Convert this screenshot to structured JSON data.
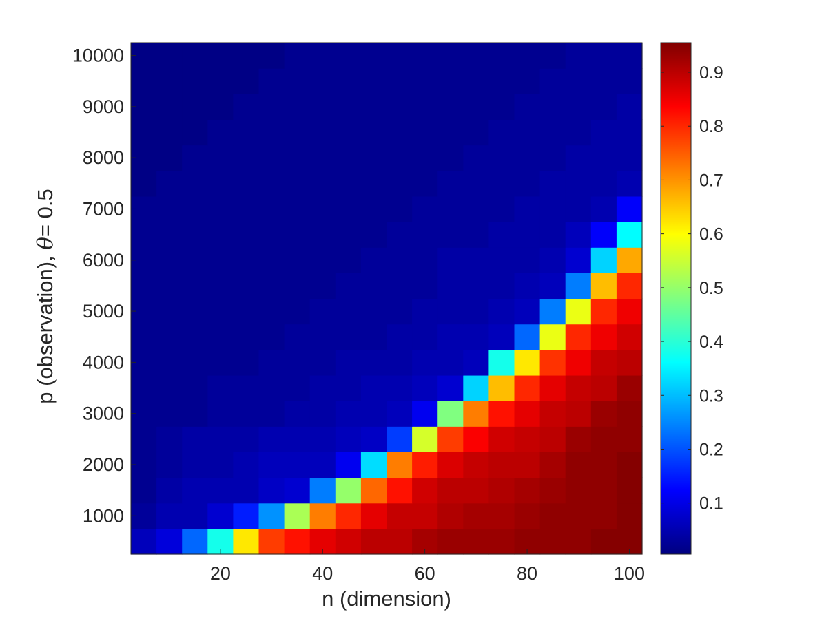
{
  "chart_data": {
    "type": "heatmap",
    "title": "",
    "xlabel": "n (dimension)",
    "ylabel_parts": {
      "prefix": "p (observation), ",
      "symbol": "θ",
      "suffix": "= 0.5"
    },
    "x_ticks": [
      20,
      40,
      60,
      80,
      100
    ],
    "y_ticks": [
      1000,
      2000,
      3000,
      4000,
      5000,
      6000,
      7000,
      8000,
      9000,
      10000
    ],
    "colorbar_ticks": [
      0.1,
      0.2,
      0.3,
      0.4,
      0.5,
      0.6,
      0.7,
      0.8,
      0.9
    ],
    "colormap": "jet",
    "clim": [
      0.005,
      0.955
    ],
    "xlim": [
      2.5,
      102.5
    ],
    "ylim": [
      250,
      10250
    ],
    "n_values": [
      5,
      10,
      15,
      20,
      25,
      30,
      35,
      40,
      45,
      50,
      55,
      60,
      65,
      70,
      75,
      80,
      85,
      90,
      95,
      100
    ],
    "p_values": [
      500,
      1000,
      1500,
      2000,
      2500,
      3000,
      3500,
      4000,
      4500,
      5000,
      5500,
      6000,
      6500,
      7000,
      7500,
      8000,
      8500,
      9000,
      9500,
      10000
    ],
    "z": [
      [
        0.06,
        0.09,
        0.22,
        0.38,
        0.62,
        0.78,
        0.82,
        0.86,
        0.88,
        0.9,
        0.9,
        0.92,
        0.93,
        0.93,
        0.93,
        0.94,
        0.94,
        0.94,
        0.95,
        0.95
      ],
      [
        0.03,
        0.05,
        0.05,
        0.08,
        0.15,
        0.26,
        0.52,
        0.72,
        0.8,
        0.86,
        0.89,
        0.89,
        0.91,
        0.92,
        0.92,
        0.93,
        0.94,
        0.94,
        0.94,
        0.95
      ],
      [
        0.02,
        0.04,
        0.05,
        0.05,
        0.05,
        0.07,
        0.08,
        0.24,
        0.5,
        0.74,
        0.82,
        0.88,
        0.9,
        0.9,
        0.91,
        0.92,
        0.93,
        0.94,
        0.94,
        0.95
      ],
      [
        0.02,
        0.03,
        0.04,
        0.04,
        0.05,
        0.06,
        0.06,
        0.06,
        0.11,
        0.33,
        0.72,
        0.81,
        0.87,
        0.89,
        0.9,
        0.9,
        0.92,
        0.94,
        0.94,
        0.95
      ],
      [
        0.02,
        0.03,
        0.04,
        0.04,
        0.04,
        0.05,
        0.05,
        0.05,
        0.06,
        0.07,
        0.18,
        0.56,
        0.78,
        0.84,
        0.88,
        0.89,
        0.9,
        0.93,
        0.94,
        0.94
      ],
      [
        0.02,
        0.02,
        0.02,
        0.03,
        0.03,
        0.03,
        0.04,
        0.04,
        0.05,
        0.05,
        0.06,
        0.11,
        0.48,
        0.72,
        0.82,
        0.86,
        0.89,
        0.9,
        0.93,
        0.94
      ],
      [
        0.02,
        0.02,
        0.02,
        0.03,
        0.03,
        0.03,
        0.03,
        0.04,
        0.04,
        0.05,
        0.05,
        0.06,
        0.08,
        0.32,
        0.66,
        0.8,
        0.86,
        0.89,
        0.9,
        0.93
      ],
      [
        0.02,
        0.02,
        0.02,
        0.02,
        0.02,
        0.03,
        0.03,
        0.03,
        0.04,
        0.04,
        0.04,
        0.05,
        0.05,
        0.06,
        0.38,
        0.62,
        0.79,
        0.85,
        0.89,
        0.9
      ],
      [
        0.02,
        0.02,
        0.02,
        0.02,
        0.02,
        0.02,
        0.03,
        0.03,
        0.03,
        0.03,
        0.04,
        0.04,
        0.05,
        0.05,
        0.06,
        0.22,
        0.58,
        0.8,
        0.85,
        0.88
      ],
      [
        0.02,
        0.02,
        0.02,
        0.02,
        0.02,
        0.02,
        0.02,
        0.03,
        0.03,
        0.03,
        0.03,
        0.04,
        0.04,
        0.04,
        0.05,
        0.06,
        0.24,
        0.58,
        0.8,
        0.85
      ],
      [
        0.02,
        0.02,
        0.02,
        0.02,
        0.02,
        0.02,
        0.02,
        0.02,
        0.03,
        0.03,
        0.03,
        0.03,
        0.04,
        0.04,
        0.04,
        0.05,
        0.06,
        0.24,
        0.66,
        0.8
      ],
      [
        0.02,
        0.02,
        0.02,
        0.02,
        0.02,
        0.02,
        0.02,
        0.02,
        0.02,
        0.03,
        0.03,
        0.03,
        0.04,
        0.04,
        0.04,
        0.04,
        0.05,
        0.08,
        0.32,
        0.68
      ],
      [
        0.02,
        0.02,
        0.02,
        0.02,
        0.02,
        0.02,
        0.02,
        0.02,
        0.02,
        0.02,
        0.03,
        0.03,
        0.03,
        0.03,
        0.04,
        0.04,
        0.04,
        0.06,
        0.12,
        0.36
      ],
      [
        0.02,
        0.02,
        0.02,
        0.02,
        0.02,
        0.02,
        0.02,
        0.02,
        0.02,
        0.02,
        0.02,
        0.03,
        0.03,
        0.03,
        0.03,
        0.04,
        0.04,
        0.04,
        0.05,
        0.12
      ],
      [
        0.01,
        0.02,
        0.02,
        0.02,
        0.02,
        0.02,
        0.02,
        0.02,
        0.02,
        0.02,
        0.02,
        0.02,
        0.03,
        0.03,
        0.03,
        0.03,
        0.04,
        0.04,
        0.04,
        0.05
      ],
      [
        0.01,
        0.01,
        0.02,
        0.02,
        0.02,
        0.02,
        0.02,
        0.02,
        0.02,
        0.02,
        0.02,
        0.02,
        0.02,
        0.03,
        0.03,
        0.03,
        0.03,
        0.04,
        0.04,
        0.04
      ],
      [
        0.01,
        0.01,
        0.01,
        0.02,
        0.02,
        0.02,
        0.02,
        0.02,
        0.02,
        0.02,
        0.02,
        0.02,
        0.02,
        0.02,
        0.03,
        0.03,
        0.03,
        0.03,
        0.04,
        0.04
      ],
      [
        0.01,
        0.01,
        0.01,
        0.01,
        0.02,
        0.02,
        0.02,
        0.02,
        0.02,
        0.02,
        0.02,
        0.02,
        0.02,
        0.02,
        0.02,
        0.03,
        0.03,
        0.03,
        0.03,
        0.04
      ],
      [
        0.01,
        0.01,
        0.01,
        0.01,
        0.01,
        0.02,
        0.02,
        0.02,
        0.02,
        0.02,
        0.02,
        0.02,
        0.02,
        0.02,
        0.02,
        0.02,
        0.03,
        0.03,
        0.03,
        0.03
      ],
      [
        0.01,
        0.01,
        0.01,
        0.01,
        0.01,
        0.01,
        0.02,
        0.02,
        0.02,
        0.02,
        0.02,
        0.02,
        0.02,
        0.02,
        0.02,
        0.02,
        0.02,
        0.03,
        0.03,
        0.03
      ]
    ]
  }
}
